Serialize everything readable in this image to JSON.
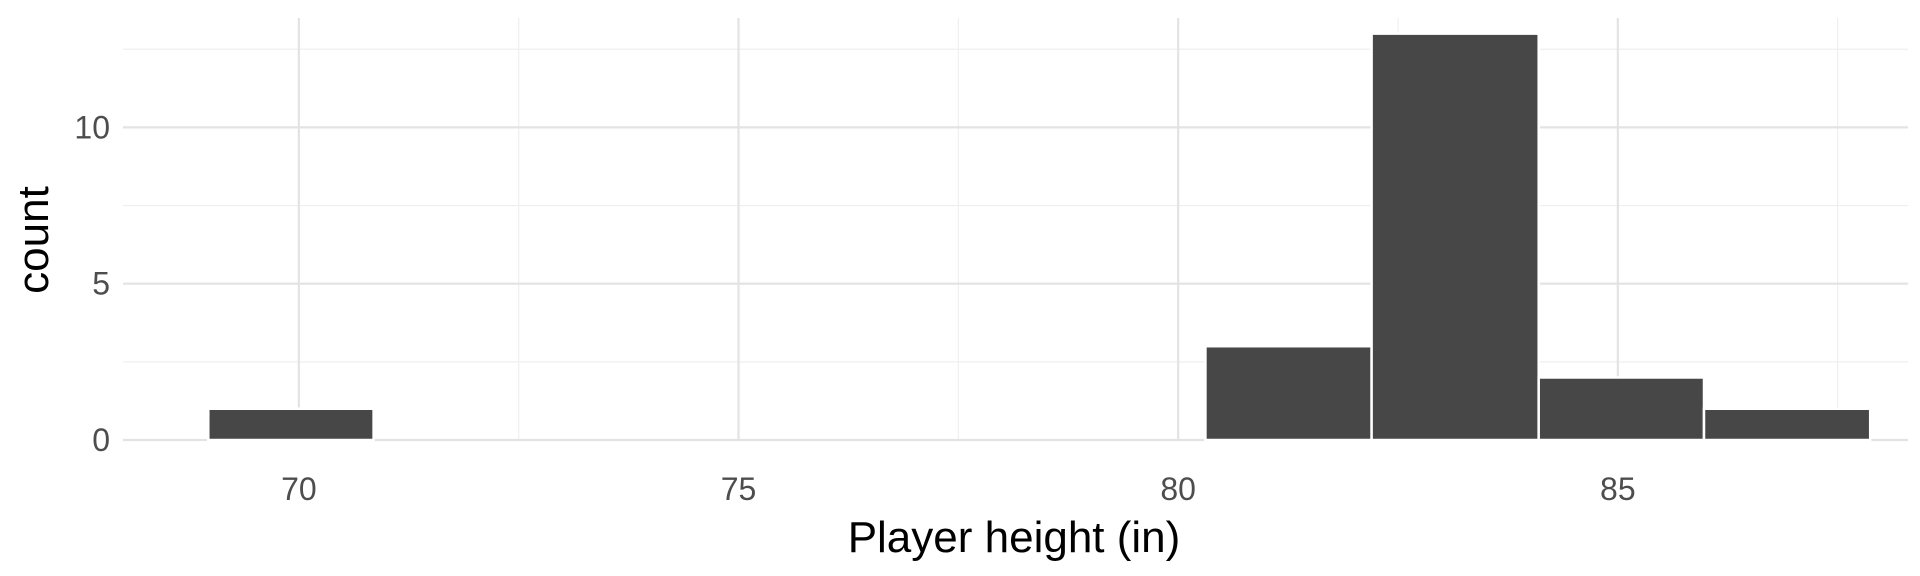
{
  "chart_data": {
    "type": "bar",
    "subtype": "histogram",
    "title": "",
    "xlabel": "Player height (in)",
    "ylabel": "count",
    "xlim": [
      68,
      88.3
    ],
    "ylim": [
      0,
      13.5
    ],
    "x_ticks": [
      70,
      75,
      80,
      85
    ],
    "y_ticks": [
      0,
      5,
      10
    ],
    "grid": true,
    "bin_edges": [
      68.97,
      70.85,
      80.31,
      82.2,
      84.1,
      85.98,
      87.87
    ],
    "bins": [
      {
        "x0": 68.97,
        "x1": 70.85,
        "count": 1
      },
      {
        "x0": 80.31,
        "x1": 82.2,
        "count": 3
      },
      {
        "x0": 82.2,
        "x1": 84.1,
        "count": 13
      },
      {
        "x0": 84.1,
        "x1": 85.98,
        "count": 2
      },
      {
        "x0": 85.98,
        "x1": 87.87,
        "count": 1
      }
    ],
    "colors": {
      "bar_fill": "#474747",
      "bar_stroke": "#ffffff",
      "grid_major": "#e3e3e3",
      "grid_minor": "#efefef",
      "tick_text": "#4d4d4d",
      "axis_title": "#000000"
    }
  }
}
